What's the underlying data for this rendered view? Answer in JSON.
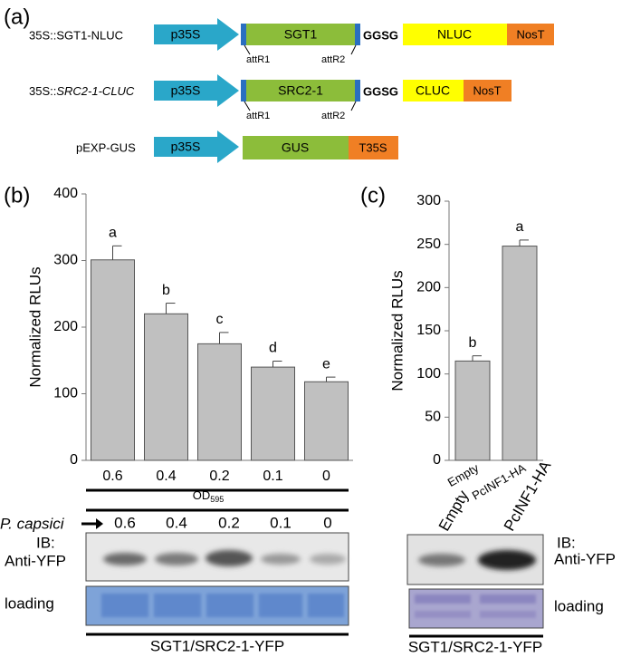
{
  "panel_labels": [
    "(a)",
    "(b)",
    "(c)"
  ],
  "constructs": [
    {
      "name": "35S::SGT1-NLUC",
      "promoter": "p35S",
      "gene": "SGT1",
      "att1": "attR1",
      "att2": "attR2",
      "linker": "GGSG",
      "tag": "NLUC",
      "terminator": "NosT"
    },
    {
      "name": "35S::",
      "name_italic": "SRC2-1-CLUC",
      "promoter": "p35S",
      "gene": "SRC2-1",
      "att1": "attR1",
      "att2": "attR2",
      "linker": "GGSG",
      "tag": "CLUC",
      "terminator": "NosT"
    },
    {
      "name": "pEXP-GUS",
      "promoter": "p35S",
      "gene": "GUS",
      "terminator": "T35S"
    }
  ],
  "chart_data": [
    {
      "type": "bar",
      "ylabel": "Normalized RLUs",
      "xlabel": "OD",
      "xlabel_sub": "595",
      "categories": [
        "0.6",
        "0.4",
        "0.2",
        "0.1",
        "0"
      ],
      "values": [
        301,
        220,
        175,
        140,
        118
      ],
      "errors": [
        21,
        16,
        17,
        9,
        7
      ],
      "letters": [
        "a",
        "b",
        "c",
        "d",
        "e"
      ],
      "color": "#c0c0c0",
      "ylim": [
        0,
        400
      ],
      "yticks": [
        0,
        100,
        200,
        300,
        400
      ]
    },
    {
      "type": "bar",
      "ylabel": "Normalized RLUs",
      "categories": [
        "Empty",
        "PcINF1-HA"
      ],
      "values": [
        115,
        248
      ],
      "errors": [
        6,
        7
      ],
      "letters": [
        "b",
        "a"
      ],
      "color": "#c0c0c0",
      "ylim": [
        0,
        300
      ],
      "yticks": [
        0,
        50,
        100,
        150,
        200,
        250,
        300
      ]
    }
  ],
  "blots": {
    "left": {
      "species": "P. capsici",
      "doses": [
        "0.6",
        "0.4",
        "0.2",
        "0.1",
        "0"
      ],
      "ib": "IB:",
      "antibody": "Anti-YFP",
      "loading": "loading",
      "caption": "SGT1/SRC2-1-YFP"
    },
    "right": {
      "lanes": [
        "Empty",
        "PcINF1-HA"
      ],
      "ib": "IB:",
      "antibody": "Anti-YFP",
      "loading": "loading",
      "caption": "SGT1/SRC2-1-YFP"
    }
  }
}
